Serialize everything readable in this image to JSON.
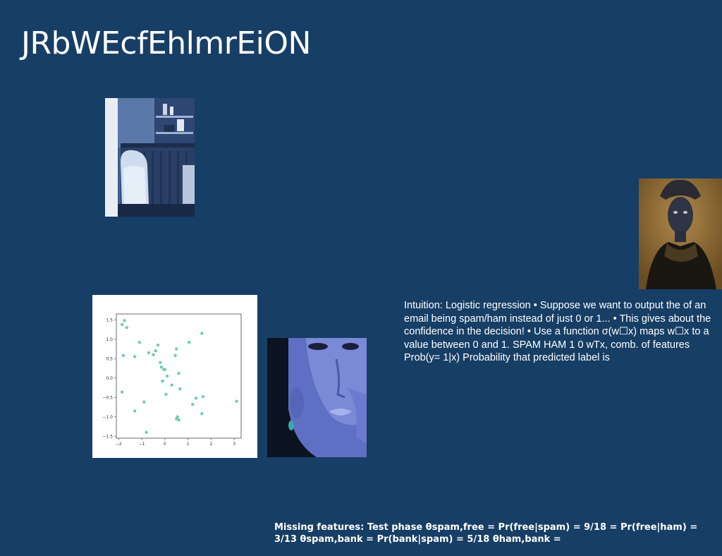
{
  "slide": {
    "title": "JRbWEcfEhlmrEiON",
    "body_text": "Intuition: Logistic regression • Suppose we want to output the of an email being spam/ham instead of just 0 or 1... • This gives about the confidence in the decision! • Use a function σ(w☐x) maps w☐x to a value between 0 and 1. SPAM HAM 1 0 wTx, comb. of features Prob(y= 1|x) Probability that predicted label is",
    "footer_text": "Missing features: Test phase θspam,free = Pr(free|spam) = 9/18 = Pr(free|ham) = 3/13 θspam,bank = Pr(bank|spam) = 5/18 θham,bank ="
  },
  "images": {
    "room": "room-interior-photo",
    "portrait": "portrait-photo",
    "face": "blue-face-photo"
  },
  "chart_data": {
    "type": "scatter",
    "title": "",
    "xlabel": "",
    "ylabel": "",
    "xlim": [
      -2.1,
      3.3
    ],
    "ylim": [
      -1.55,
      1.65
    ],
    "xticks": [
      -2,
      -1,
      0,
      1,
      2,
      3
    ],
    "yticks": [
      -1.5,
      -1.0,
      -0.5,
      0.0,
      0.5,
      1.0,
      1.5
    ],
    "tick_labels_x": [
      "−2",
      "−1",
      "0",
      "1",
      "2",
      "3"
    ],
    "tick_labels_y": [
      "−1.5",
      "−1.0",
      "−0.5",
      "0.0",
      "0.5",
      "1.0",
      "1.5"
    ],
    "grid": false,
    "point_color": "#6fcbb4",
    "x": [
      -1.75,
      -1.85,
      -1.65,
      -1.8,
      -1.1,
      -0.7,
      -0.3,
      -0.5,
      -0.2,
      -0.4,
      -1.3,
      -0.15,
      -0.05,
      0.0,
      0.1,
      -0.1,
      0.05,
      0.5,
      0.45,
      0.6,
      0.65,
      0.5,
      1.05,
      1.6,
      1.2,
      1.35,
      1.65,
      1.6,
      -1.85,
      -1.3,
      -0.9,
      0.55,
      0.6,
      -0.8,
      3.1,
      0.3
    ],
    "y": [
      1.48,
      1.38,
      1.3,
      0.58,
      0.92,
      0.65,
      0.85,
      0.6,
      0.4,
      0.7,
      0.55,
      0.28,
      0.22,
      0.22,
      0.05,
      -0.08,
      -0.42,
      0.75,
      0.58,
      0.12,
      -0.28,
      -1.05,
      0.92,
      1.15,
      -0.68,
      -0.52,
      -0.48,
      -0.92,
      -0.36,
      -0.85,
      -0.62,
      -1.0,
      -1.08,
      -1.4,
      -0.6,
      -0.18
    ]
  }
}
